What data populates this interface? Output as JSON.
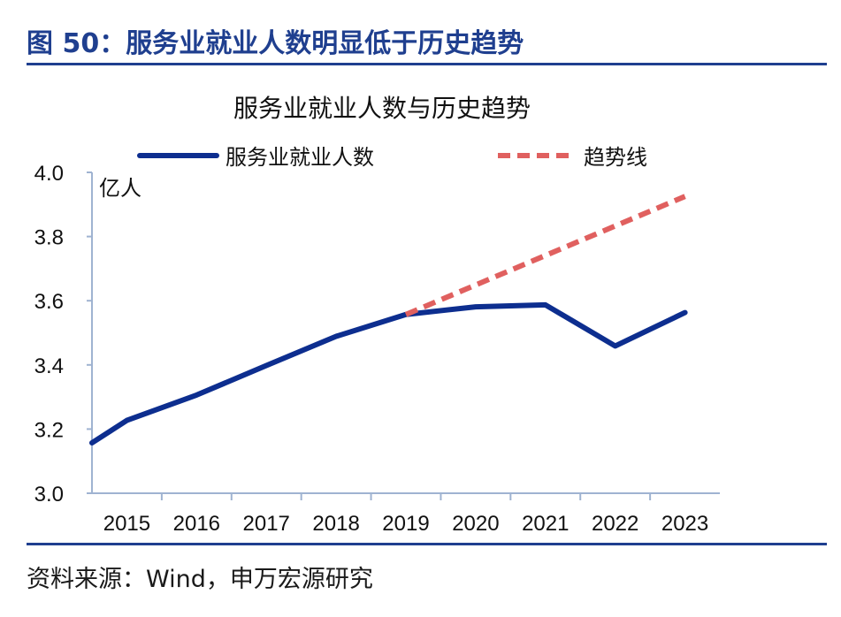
{
  "figure": {
    "title": "图 50：服务业就业人数明显低于历史趋势",
    "source": "资料来源：Wind，申万宏源研究"
  },
  "chart_data": {
    "type": "line",
    "title": "服务业就业人数与历史趋势",
    "ylabel": "亿人",
    "xlabel": "",
    "ylim": [
      3.0,
      4.0
    ],
    "y_ticks": [
      3.0,
      3.2,
      3.4,
      3.6,
      3.8,
      4.0
    ],
    "y_tick_labels": [
      "3.0",
      "3.2",
      "3.4",
      "3.6",
      "3.8",
      "4.0"
    ],
    "categories": [
      "2015",
      "2016",
      "2017",
      "2018",
      "2019",
      "2020",
      "2021",
      "2022",
      "2023"
    ],
    "grid": false,
    "legend_position": "top",
    "series": [
      {
        "name": "服务业就业人数",
        "style": "solid",
        "color": "#0d2e8f",
        "points": [
          {
            "x": 2014.0,
            "y": 3.157
          },
          {
            "x": 2014.5,
            "y": 3.227
          },
          {
            "x": 2015.5,
            "y": 3.306
          },
          {
            "x": 2016.5,
            "y": 3.398
          },
          {
            "x": 2017.5,
            "y": 3.489
          },
          {
            "x": 2018.5,
            "y": 3.557
          },
          {
            "x": 2019.5,
            "y": 3.581
          },
          {
            "x": 2020.5,
            "y": 3.587
          },
          {
            "x": 2021.5,
            "y": 3.459
          },
          {
            "x": 2022.5,
            "y": 3.563
          }
        ]
      },
      {
        "name": "趋势线",
        "style": "dashed",
        "color": "#e0605f",
        "points": [
          {
            "x": 2018.5,
            "y": 3.557
          },
          {
            "x": 2022.5,
            "y": 3.925
          }
        ]
      }
    ]
  }
}
